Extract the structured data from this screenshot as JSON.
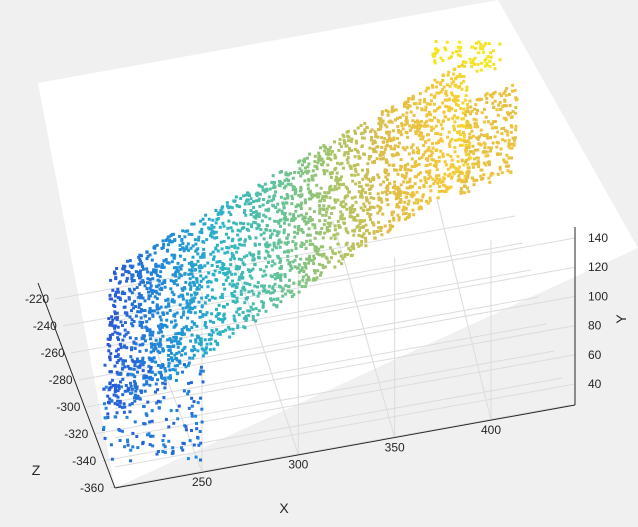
{
  "chart_data": {
    "type": "scatter",
    "title": "",
    "projection": "3d",
    "grid": true,
    "background": "#ffffff",
    "figure_background": "#f0f0f0",
    "colormap": "parula",
    "colormap_stops": [
      "#2a57d6",
      "#1f8bd9",
      "#2ab3c8",
      "#5fc29a",
      "#a8c468",
      "#e0bd45",
      "#f5c83a",
      "#f4ea1c"
    ],
    "axes": {
      "x": {
        "label": "X",
        "range": [
          200,
          430
        ],
        "ticks": [
          250,
          300,
          350,
          400
        ],
        "tick_labels": [
          "250",
          "300",
          "350",
          "400"
        ]
      },
      "y": {
        "label": "Y",
        "range": [
          25,
          150
        ],
        "ticks": [
          40,
          60,
          80,
          100,
          120,
          140
        ],
        "tick_labels": [
          "40",
          "60",
          "80",
          "100",
          "120",
          "140"
        ]
      },
      "z": {
        "label": "Z",
        "range": [
          -365,
          -210
        ],
        "ticks": [
          -220,
          -240,
          -260,
          -280,
          -300,
          -320,
          -340,
          -360
        ],
        "tick_labels": [
          "-220",
          "-240",
          "-260",
          "-280",
          "-300",
          "-320",
          "-340",
          "-360"
        ]
      }
    },
    "point_cloud": {
      "description_shape": "sloped planar surfaces",
      "approx_x_extent": [
        205,
        420
      ],
      "approx_y_extent": [
        25,
        148
      ],
      "approx_z_extent": [
        -362,
        -215
      ],
      "color_by": "x"
    }
  }
}
